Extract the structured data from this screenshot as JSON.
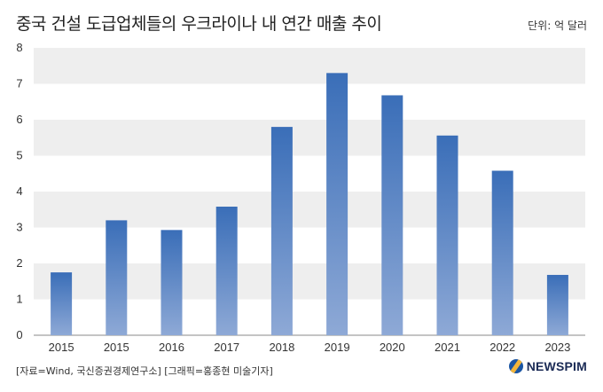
{
  "header": {
    "title": "중국 건설 도급업체들의 우크라이나 내 연간 매출 추이",
    "unit": "단위: 억 달러"
  },
  "footer": {
    "source": "[자료=Wind, 국신증권경제연구소] [그래픽=홍종현 미술기자]",
    "logo_text": "NEWSPIM"
  },
  "colors": {
    "bar_top": "#3a6eb8",
    "bar_bottom": "#8ea9d6",
    "band": "#eeeeee"
  },
  "chart_data": {
    "type": "bar",
    "title": "중국 건설 도급업체들의 우크라이나 내 연간 매출 추이",
    "ylabel": "",
    "xlabel": "",
    "ylim": [
      0,
      8
    ],
    "yticks": [
      0,
      1,
      2,
      3,
      4,
      5,
      6,
      7,
      8
    ],
    "categories": [
      "2015",
      "2015",
      "2016",
      "2017",
      "2018",
      "2019",
      "2020",
      "2021",
      "2022",
      "2023"
    ],
    "values": [
      1.75,
      3.2,
      2.93,
      3.58,
      5.8,
      7.3,
      6.68,
      5.56,
      4.58,
      1.68
    ],
    "grid": "alternating horizontal bands"
  }
}
